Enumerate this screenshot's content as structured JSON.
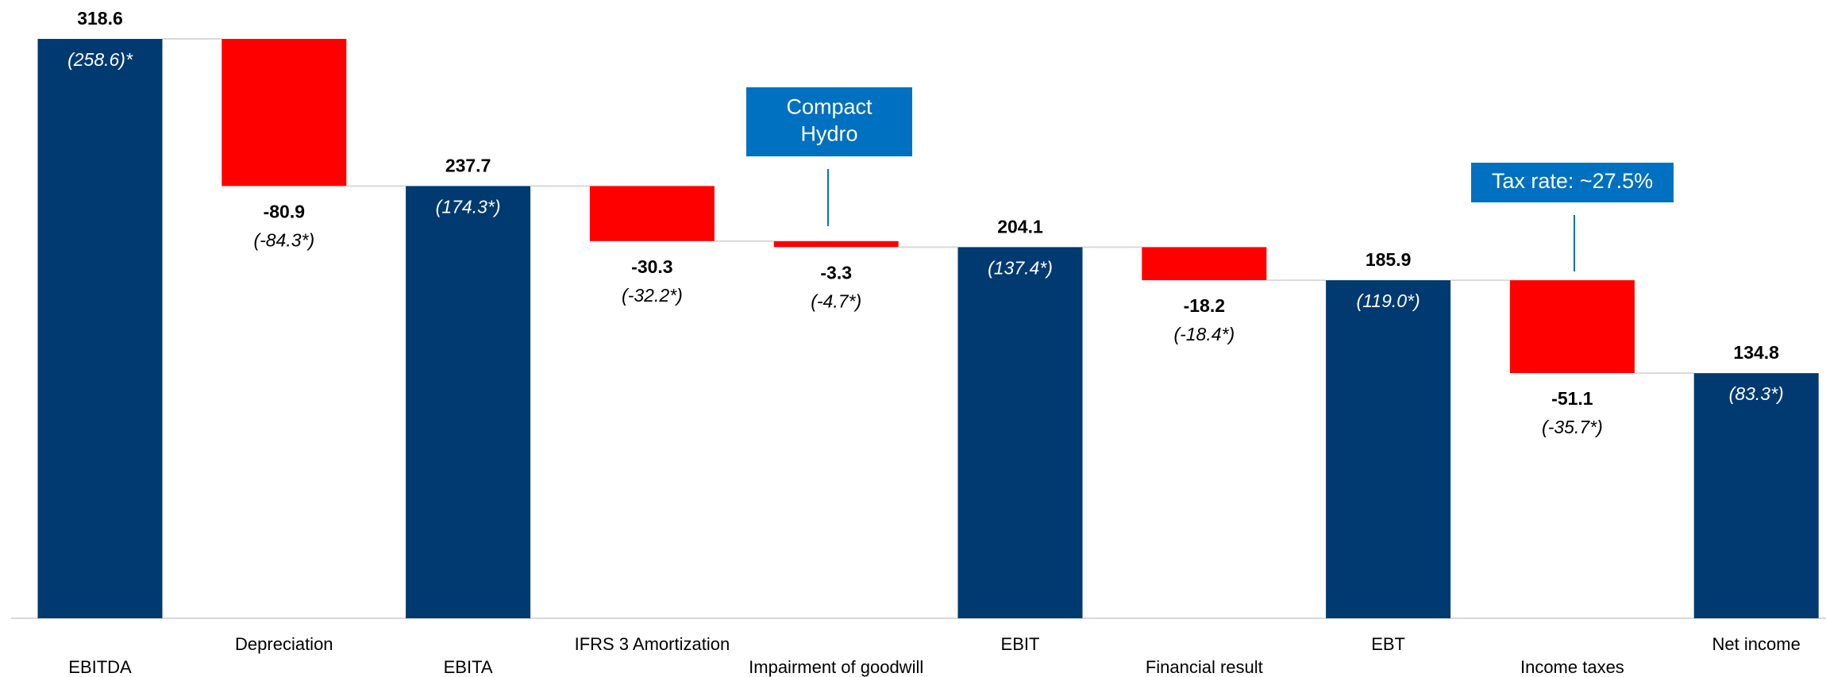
{
  "chart_data": {
    "type": "waterfall",
    "categories": [
      "EBITDA",
      "Depreciation",
      "EBITA",
      "IFRS 3 Amortization",
      "Impairment of goodwill",
      "EBIT",
      "Financial result",
      "EBT",
      "Income taxes",
      "Net income"
    ],
    "values": [
      318.6,
      -80.9,
      237.7,
      -30.3,
      -3.3,
      204.1,
      -18.2,
      185.9,
      -51.1,
      134.8
    ],
    "sub_labels": [
      "(258.6)*",
      "(-84.3*)",
      "(174.3*)",
      "(-32.2*)",
      "(-4.7*)",
      "(137.4*)",
      "(-18.4*)",
      "(119.0*)",
      "(-35.7*)",
      "(83.3*)"
    ],
    "colors": [
      "#003a70",
      "#ff0000",
      "#003a70",
      "#ff0000",
      "#ff0000",
      "#003a70",
      "#ff0000",
      "#003a70",
      "#ff0000",
      "#003a70"
    ],
    "annotations": [
      "Compact Hydro",
      "Tax rate: ~27.5%"
    ],
    "annotation_color": "#0070c0",
    "ylim": [
      0,
      340
    ]
  }
}
